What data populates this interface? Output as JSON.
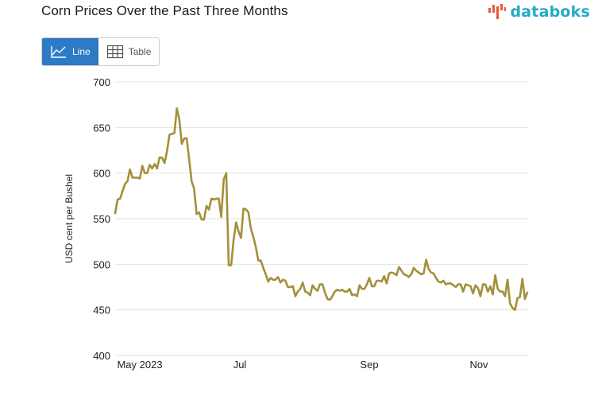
{
  "header": {
    "title": "Corn Prices Over the Past Three Months",
    "brand": "databoks"
  },
  "toggle": {
    "line_label": "Line",
    "table_label": "Table",
    "active": "line"
  },
  "colors": {
    "line": "#a3903a",
    "active_button": "#2d7bc4",
    "brand": "#25a8c8",
    "brand_mark": "#e8593c",
    "grid": "#e2e2e2"
  },
  "chart_data": {
    "type": "line",
    "title": "Corn Prices Over the Past Three Months",
    "ylabel": "USD cent per Bushel",
    "xlabel": "",
    "ylim": [
      400,
      700
    ],
    "yticks": [
      "700",
      "650",
      "600",
      "550",
      "500",
      "450",
      "400"
    ],
    "xticks": [
      "May 2023",
      "Jul",
      "Sep",
      "Nov"
    ],
    "grid": true,
    "series": [
      {
        "values": [
          556,
          571,
          572,
          580,
          588,
          591,
          604,
          595,
          595,
          595,
          594,
          608,
          600,
          600,
          609,
          605,
          610,
          605,
          617,
          617,
          611,
          624,
          642,
          643,
          644,
          671,
          659,
          632,
          638,
          638,
          615,
          591,
          583,
          555,
          557,
          549,
          549,
          564,
          560,
          572,
          571,
          572,
          572,
          552,
          593,
          600,
          499,
          499,
          527,
          546,
          536,
          529,
          561,
          560,
          557,
          539,
          530,
          519,
          504,
          504,
          496,
          489,
          481,
          485,
          483,
          483,
          486,
          480,
          483,
          482,
          475,
          475,
          476,
          465,
          470,
          473,
          480,
          470,
          469,
          466,
          477,
          473,
          471,
          478,
          478,
          469,
          462,
          461,
          465,
          470,
          472,
          471,
          472,
          470,
          470,
          473,
          466,
          467,
          465,
          477,
          473,
          473,
          478,
          485,
          476,
          476,
          482,
          482,
          481,
          487,
          479,
          490,
          491,
          490,
          488,
          497,
          493,
          489,
          488,
          486,
          489,
          496,
          493,
          491,
          489,
          490,
          505,
          495,
          491,
          490,
          485,
          481,
          480,
          482,
          478,
          479,
          479,
          477,
          475,
          478,
          478,
          470,
          478,
          477,
          476,
          468,
          477,
          474,
          465,
          478,
          478,
          470,
          476,
          467,
          488,
          473,
          470,
          470,
          465,
          483,
          457,
          452,
          450,
          463,
          464,
          484,
          462,
          469
        ]
      }
    ]
  }
}
